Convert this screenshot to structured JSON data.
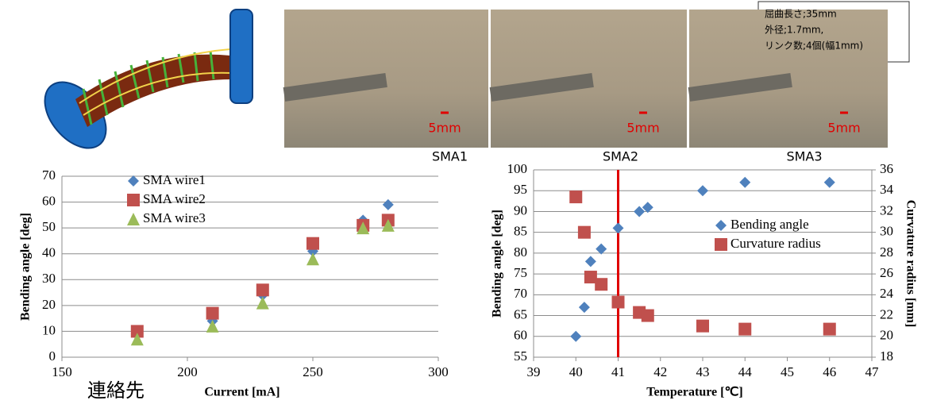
{
  "chart_data": [
    {
      "type": "scatter",
      "x_label": "Current [mA]",
      "y_label": "Bending angle [deg]",
      "x": [
        180,
        210,
        230,
        250,
        270,
        280
      ],
      "series": [
        {
          "name": "SMA wire1",
          "color": "#4f81bd",
          "marker": "diamond",
          "values": [
            9,
            14,
            24,
            41,
            53,
            59
          ]
        },
        {
          "name": "SMA wire2",
          "color": "#c0504d",
          "marker": "square",
          "values": [
            10,
            17,
            26,
            44,
            51,
            53
          ]
        },
        {
          "name": "SMA wire3",
          "color": "#9bbb59",
          "marker": "triangle",
          "values": [
            7,
            12,
            21,
            38,
            50,
            51
          ]
        }
      ],
      "xlim": [
        150,
        300
      ],
      "xticks": [
        150,
        200,
        250,
        300
      ],
      "ylim": [
        0,
        70
      ],
      "yticks": [
        0,
        10,
        20,
        30,
        40,
        50,
        60,
        70
      ],
      "grid": true,
      "legend": "upper left"
    },
    {
      "type": "scatter",
      "x_label": "Temperature [℃]",
      "y_label": "Bending angle [deg]",
      "y2_label": "Curvature radius [mm]",
      "x": [
        40,
        40.2,
        40.35,
        40.6,
        41,
        41.5,
        41.7,
        43,
        44,
        46
      ],
      "series": [
        {
          "name": "Bending angle",
          "color": "#4f81bd",
          "marker": "diamond",
          "values": [
            60,
            67,
            78,
            81,
            86,
            90,
            91,
            95,
            97,
            97
          ]
        },
        {
          "name": "Curvature radius",
          "color": "#c0504d",
          "marker": "square",
          "axis": "y2",
          "values": [
            33.4,
            30,
            25.7,
            25,
            23.3,
            22.3,
            22,
            21,
            20.7,
            20.7
          ]
        }
      ],
      "xlim": [
        39,
        47
      ],
      "xticks": [
        39,
        40,
        41,
        42,
        43,
        44,
        45,
        46,
        47
      ],
      "ylim": [
        55,
        100
      ],
      "yticks": [
        55,
        60,
        65,
        70,
        75,
        80,
        85,
        90,
        95,
        100
      ],
      "y2lim": [
        18,
        36
      ],
      "y2ticks": [
        18,
        20,
        22,
        24,
        26,
        28,
        30,
        32,
        34,
        36
      ],
      "vline": {
        "x": 41,
        "color": "#e00000"
      },
      "grid": true,
      "legend": "center right"
    }
  ],
  "photos": [
    {
      "label": "SMA1",
      "scale": "5mm"
    },
    {
      "label": "SMA2",
      "scale": "5mm"
    },
    {
      "label": "SMA3",
      "scale": "5mm"
    }
  ],
  "info_box": [
    "屈曲長さ;35mm",
    "外径;1.7mm,",
    "リンク数;4個(幅1mm)"
  ],
  "footer": "連絡先"
}
